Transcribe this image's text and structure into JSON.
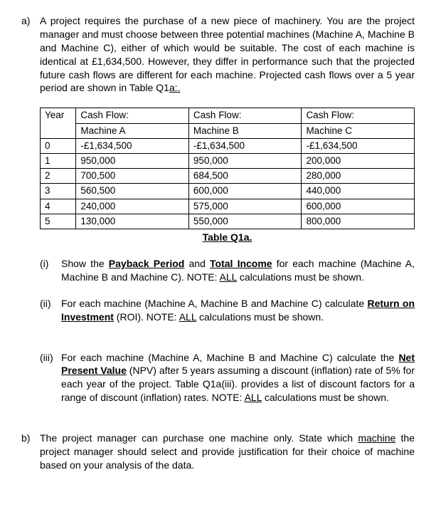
{
  "partA": {
    "letter": "a)",
    "text": "A project requires the purchase of a new piece of machinery.  You are the project manager and must choose between three potential machines (Machine A, Machine B and Machine C), either of which would be suitable. The cost of each machine is identical at £1,634,500. However, they differ in performance such that the projected future cash flows are different for each machine.  Projected cash flows over a 5 year period are shown in Table Q1",
    "tableRefSuffix": "a:."
  },
  "table": {
    "hdr": {
      "year": "Year",
      "cfLabel": "Cash Flow:",
      "mA": "Machine A",
      "mB": "Machine B",
      "mC": "Machine C"
    },
    "rows": [
      {
        "y": "0",
        "a": "-£1,634,500",
        "b": "-£1,634,500",
        "c": "-£1,634,500"
      },
      {
        "y": "1",
        "a": "950,000",
        "b": "950,000",
        "c": "200,000"
      },
      {
        "y": "2",
        "a": "700,500",
        "b": "684,500",
        "c": "280,000"
      },
      {
        "y": "3",
        "a": "560,500",
        "b": "600,000",
        "c": "440,000"
      },
      {
        "y": "4",
        "a": "240,000",
        "b": "575,000",
        "c": "600,000"
      },
      {
        "y": "5",
        "a": "130,000",
        "b": "550,000",
        "c": "800,000"
      }
    ],
    "caption": "Table Q1a."
  },
  "subI": {
    "letter": "(i)",
    "pre": "Show the ",
    "term1": "Payback Period",
    "mid1": " and ",
    "term2": "Total Income",
    "post1": " for each machine (Machine A, Machine B and Machine C). NOTE: ",
    "allWord": "ALL",
    "post2": " calculations must be shown."
  },
  "subII": {
    "letter": "(ii)",
    "pre": "For each machine (Machine A, Machine B and Machine C) calculate ",
    "term": "Return on Investment",
    "post1": " (ROI). NOTE: ",
    "allWord": "ALL",
    "post2": " calculations must be shown."
  },
  "subIII": {
    "letter": "(iii)",
    "pre": "For each machine (Machine A, Machine B and Machine C) calculate the ",
    "term": "Net Present Value",
    "post1": " (NPV) after 5 years assuming a discount (inflation) rate of 5% for each year of the project.  Table Q1a(iii). provides a list of discount factors for a range of discount (inflation) rates. NOTE: ",
    "allWord": "ALL",
    "post2": " calculations must be shown."
  },
  "partB": {
    "letter": "b)",
    "pre": "The project manager can purchase one machine only.  State which ",
    "term": "machine",
    "post": " the project manager should select and provide justification for their choice of machine based on your analysis of the data."
  }
}
